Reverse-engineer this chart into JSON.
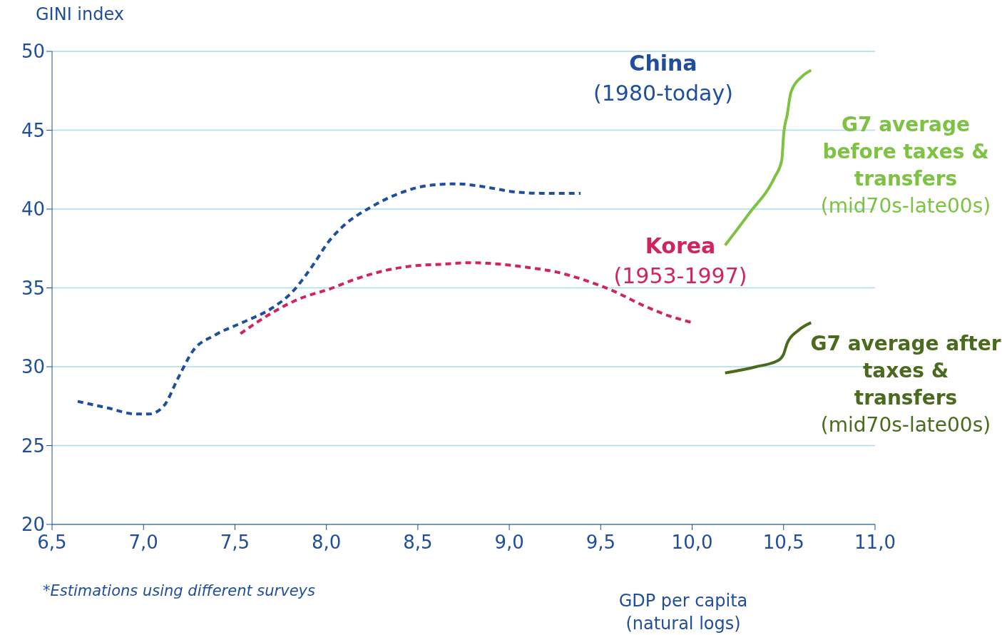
{
  "chart_data": {
    "type": "line",
    "ylabel": "GINI index",
    "xlabel": "GDP per capita\n(natural logs)",
    "xlim": [
      6.5,
      11
    ],
    "xticks": [
      {
        "value": 6.5,
        "label": "6,5"
      },
      {
        "value": 7,
        "label": "7,0"
      },
      {
        "value": 7.5,
        "label": "7,5"
      },
      {
        "value": 8,
        "label": "8,0"
      },
      {
        "value": 8.5,
        "label": "8,5"
      },
      {
        "value": 9,
        "label": "9,0"
      },
      {
        "value": 9.5,
        "label": "9,5"
      },
      {
        "value": 10,
        "label": "10,0"
      },
      {
        "value": 10.5,
        "label": "10,5"
      },
      {
        "value": 11,
        "label": "11,0"
      }
    ],
    "ylim": [
      20,
      50
    ],
    "yticks": [
      20,
      25,
      30,
      35,
      40,
      45,
      50
    ],
    "grid": "y",
    "marker": "none",
    "series": [
      {
        "name": "China",
        "color": "#1f4e9c",
        "line_style": "dashed",
        "x": [
          6.64,
          6.8,
          6.96,
          7.03,
          7.11,
          7.19,
          7.27,
          7.39,
          7.54,
          7.7,
          7.81,
          7.93,
          8.01,
          8.09,
          8.24,
          8.4,
          8.56,
          8.71,
          8.87,
          9.02,
          9.18,
          9.39
        ],
        "values": [
          27.8,
          27.4,
          27,
          27,
          27.5,
          29.3,
          31,
          32,
          32.8,
          33.7,
          34.7,
          36.5,
          37.9,
          38.9,
          40.1,
          41,
          41.5,
          41.6,
          41.4,
          41.1,
          41,
          41
        ]
      },
      {
        "name": "Korea",
        "color": "#d0245e",
        "line_style": "dashed",
        "x": [
          7.53,
          7.7,
          7.85,
          8.01,
          8.17,
          8.32,
          8.48,
          8.63,
          8.79,
          8.95,
          9.1,
          9.26,
          9.41,
          9.57,
          9.73,
          9.88,
          10
        ],
        "values": [
          32.1,
          33.4,
          34.3,
          34.9,
          35.6,
          36.1,
          36.4,
          36.5,
          36.6,
          36.5,
          36.3,
          36,
          35.5,
          34.8,
          33.9,
          33.2,
          32.8
        ]
      },
      {
        "name": "G7 average before taxes & transfers",
        "color": "#7dc242",
        "line_style": "solid",
        "x": [
          10.18,
          10.31,
          10.45,
          10.49,
          10.5,
          10.52,
          10.54,
          10.6,
          10.65
        ],
        "values": [
          37.7,
          39.7,
          42,
          43.1,
          44.7,
          46,
          47.4,
          48.4,
          48.8
        ]
      },
      {
        "name": "G7 average after taxes & transfers",
        "color": "#4a6b1e",
        "line_style": "solid",
        "x": [
          10.18,
          10.35,
          10.47,
          10.5,
          10.52,
          10.58,
          10.65
        ],
        "values": [
          29.6,
          30,
          30.4,
          30.8,
          31.5,
          32.3,
          32.8
        ]
      }
    ],
    "annotations": [
      "(1980-today)",
      "(1953-1997)",
      "(mid70s-late00s)",
      "(mid70s-late00s)",
      "*Estimations using different surveys"
    ]
  }
}
